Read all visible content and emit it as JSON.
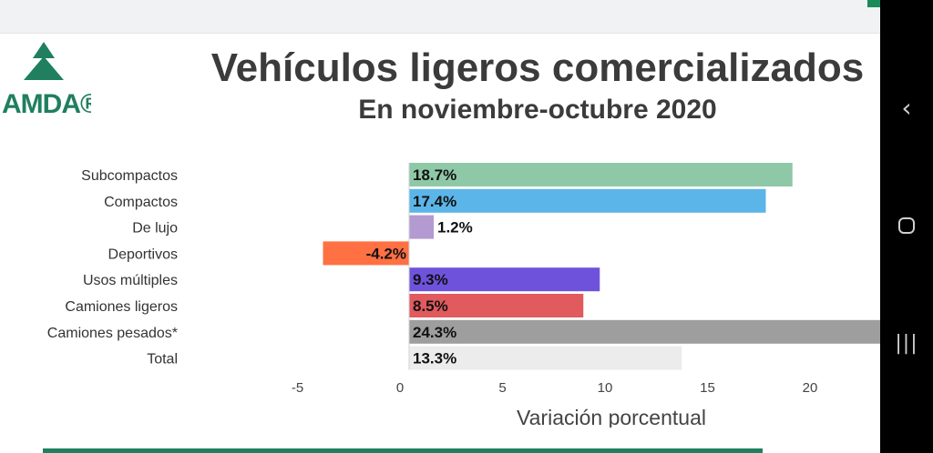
{
  "page": {
    "title": "Vehículos ligeros comercializados",
    "subtitle": "En noviembre-octubre 2020",
    "logo_text": "AMDA®"
  },
  "colors": {
    "logo_green": "#1f7f5e",
    "bottom_bar": "#1f7f5e"
  },
  "nav": {
    "back_icon": "chevron-left-icon",
    "home_icon": "circle-home-icon",
    "recents_icon": "recents-icon"
  },
  "chart_data": {
    "type": "bar",
    "orientation": "horizontal",
    "title": "Vehículos ligeros comercializados",
    "subtitle": "En noviembre-octubre 2020",
    "xlabel": "Variación porcentual",
    "ylabel": "",
    "xlim": [
      -5.5,
      23
    ],
    "xticks": [
      -5,
      0,
      5,
      10,
      15,
      20
    ],
    "categories": [
      "Subcompactos",
      "Compactos",
      "De lujo",
      "Deportivos",
      "Usos múltiples",
      "Camiones ligeros",
      "Camiones pesados*",
      "Total"
    ],
    "values": [
      18.7,
      17.4,
      1.2,
      -4.2,
      9.3,
      8.5,
      24.3,
      13.3
    ],
    "value_labels": [
      "18.7%",
      "17.4%",
      "1.2%",
      "-4.2%",
      "9.3%",
      "8.5%",
      "24.3%",
      "13.3%"
    ],
    "colors": [
      "#8fc8a6",
      "#5bb5e8",
      "#b39ad1",
      "#ff7043",
      "#6f52dc",
      "#e05a5e",
      "#9e9e9e",
      "#ececec"
    ],
    "grid": false,
    "legend": "none"
  }
}
